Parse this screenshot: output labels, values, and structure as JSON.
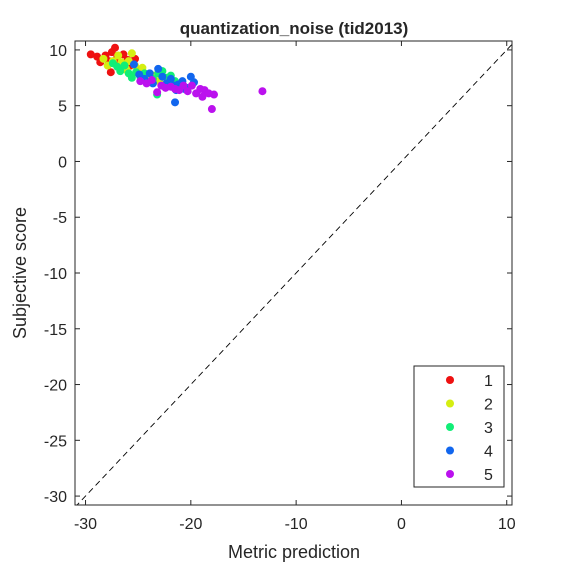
{
  "chart_data": {
    "type": "scatter",
    "title": "quantization_noise (tid2013)",
    "xlabel": "Metric prediction",
    "ylabel": "Subjective score",
    "xlim": [
      -31,
      10.5
    ],
    "ylim": [
      -30.8,
      10.8
    ],
    "xticks": [
      -30,
      -20,
      -10,
      0,
      10
    ],
    "yticks": [
      10,
      5,
      0,
      -5,
      -10,
      -15,
      -20,
      -25,
      -30
    ],
    "grid": false,
    "legend_position": "bottom-right",
    "reference_line": {
      "style": "dashed",
      "slope": 1,
      "intercept": 0
    },
    "series": [
      {
        "name": "1",
        "color": "#ee1111",
        "points": [
          [
            -29.5,
            9.6
          ],
          [
            -28.9,
            9.4
          ],
          [
            -28.6,
            8.9
          ],
          [
            -28.1,
            9.5
          ],
          [
            -27.8,
            9.0
          ],
          [
            -27.5,
            9.8
          ],
          [
            -27.2,
            10.2
          ],
          [
            -27.0,
            9.3
          ],
          [
            -26.8,
            8.7
          ],
          [
            -27.6,
            8.0
          ],
          [
            -26.4,
            9.6
          ],
          [
            -26.0,
            9.1
          ],
          [
            -26.5,
            8.4
          ],
          [
            -25.7,
            8.6
          ],
          [
            -25.3,
            9.2
          ],
          [
            -24.8,
            8.2
          ]
        ]
      },
      {
        "name": "2",
        "color": "#d5ee11",
        "points": [
          [
            -28.3,
            9.2
          ],
          [
            -27.9,
            8.6
          ],
          [
            -27.4,
            9.0
          ],
          [
            -26.9,
            9.5
          ],
          [
            -26.6,
            8.9
          ],
          [
            -26.2,
            8.4
          ],
          [
            -25.9,
            9.0
          ],
          [
            -25.6,
            9.7
          ],
          [
            -25.3,
            8.6
          ],
          [
            -25.0,
            8.0
          ],
          [
            -24.6,
            8.4
          ],
          [
            -24.3,
            7.8
          ],
          [
            -23.9,
            7.4
          ],
          [
            -23.5,
            7.7
          ],
          [
            -23.0,
            7.2
          ],
          [
            -26.1,
            8.2
          ]
        ]
      },
      {
        "name": "3",
        "color": "#11ee77",
        "points": [
          [
            -27.4,
            8.8
          ],
          [
            -27.0,
            8.5
          ],
          [
            -26.7,
            8.1
          ],
          [
            -26.3,
            8.6
          ],
          [
            -25.9,
            7.9
          ],
          [
            -25.6,
            7.5
          ],
          [
            -25.2,
            8.0
          ],
          [
            -24.8,
            7.6
          ],
          [
            -24.4,
            7.9
          ],
          [
            -24.0,
            7.1
          ],
          [
            -23.6,
            7.4
          ],
          [
            -23.1,
            7.9
          ],
          [
            -22.7,
            8.1
          ],
          [
            -22.3,
            7.5
          ],
          [
            -21.9,
            7.7
          ],
          [
            -21.5,
            7.2
          ],
          [
            -23.2,
            6.0
          ]
        ]
      },
      {
        "name": "4",
        "color": "#1166ee",
        "points": [
          [
            -25.4,
            8.7
          ],
          [
            -24.9,
            7.8
          ],
          [
            -24.4,
            7.4
          ],
          [
            -23.9,
            7.9
          ],
          [
            -23.6,
            7.0
          ],
          [
            -23.1,
            8.3
          ],
          [
            -22.7,
            7.6
          ],
          [
            -22.3,
            7.0
          ],
          [
            -21.9,
            7.4
          ],
          [
            -21.6,
            6.8
          ],
          [
            -21.2,
            6.9
          ],
          [
            -20.8,
            7.2
          ],
          [
            -20.4,
            6.6
          ],
          [
            -20.0,
            7.6
          ],
          [
            -19.7,
            7.1
          ],
          [
            -21.4,
            6.4
          ],
          [
            -21.5,
            5.3
          ],
          [
            -20.6,
            6.5
          ]
        ]
      },
      {
        "name": "5",
        "color": "#bb11ee",
        "points": [
          [
            -24.8,
            7.2
          ],
          [
            -24.2,
            7.0
          ],
          [
            -23.7,
            7.3
          ],
          [
            -23.2,
            6.2
          ],
          [
            -22.8,
            6.8
          ],
          [
            -22.4,
            6.6
          ],
          [
            -21.9,
            6.7
          ],
          [
            -21.5,
            6.5
          ],
          [
            -21.1,
            6.4
          ],
          [
            -20.7,
            6.8
          ],
          [
            -20.3,
            6.3
          ],
          [
            -19.9,
            6.8
          ],
          [
            -19.5,
            6.1
          ],
          [
            -19.1,
            6.5
          ],
          [
            -18.7,
            6.4
          ],
          [
            -18.3,
            6.1
          ],
          [
            -17.8,
            6.0
          ],
          [
            -18.0,
            4.7
          ],
          [
            -18.9,
            5.8
          ],
          [
            -13.2,
            6.3
          ]
        ]
      }
    ]
  }
}
